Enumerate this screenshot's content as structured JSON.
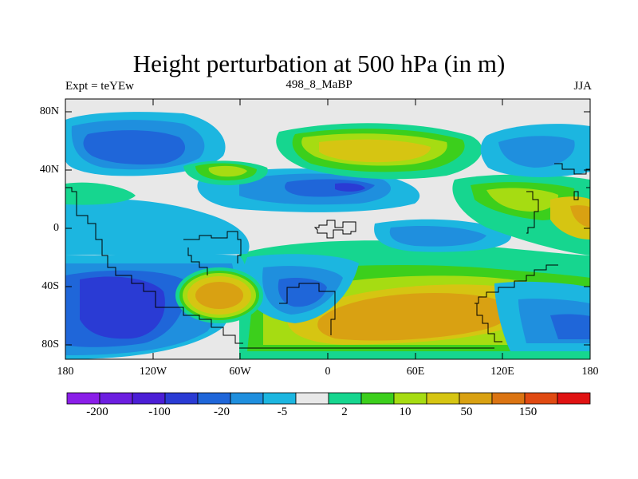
{
  "title": "Height perturbation at 500 hPa (in m)",
  "left_label": "Expt = teYEw",
  "center_label": "498_8_MaBP",
  "right_label": "JJA",
  "axes": {
    "y_ticks": [
      "80N",
      "40N",
      "0",
      "40S",
      "80S"
    ],
    "x_ticks": [
      "180",
      "120W",
      "60W",
      "0",
      "60E",
      "120E",
      "180"
    ]
  },
  "colorbar": {
    "colors": [
      "#8a1ee8",
      "#6c1ee0",
      "#4b1ed6",
      "#2a3bd4",
      "#1f66d9",
      "#1f8fde",
      "#1cb6e0",
      "#e8e8e8",
      "#16d68f",
      "#3ccf1c",
      "#a6dc12",
      "#d6c512",
      "#d9a112",
      "#db7412",
      "#e04a12",
      "#e01212"
    ],
    "labels": [
      "-200",
      "-100",
      "-20",
      "-5",
      "2",
      "10",
      "50",
      "150"
    ]
  },
  "field_colors": {
    "neutral": "#e8e8e8",
    "c1": "#1cb6e0",
    "c2": "#1f8fde",
    "c3": "#1f66d9",
    "c4": "#2a3bd4",
    "c5": "#4b1ed6",
    "w1": "#16d68f",
    "w2": "#3ccf1c",
    "w3": "#a6dc12",
    "w4": "#d6c512",
    "w5": "#d9a112",
    "w6": "#db7412",
    "w7": "#e04a12"
  }
}
